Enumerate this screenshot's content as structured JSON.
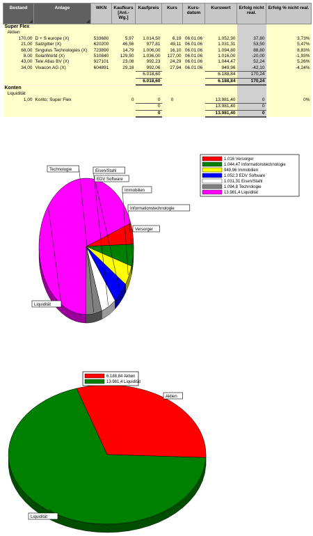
{
  "table": {
    "headers": [
      "Bestand",
      "Anlage",
      "WKN",
      "Kaufkurs [Anl.-Wg.]",
      "Kaufpreis",
      "Kurs",
      "Kurs-datum",
      "Kurswert",
      "Erfolg nicht real.",
      "Erfolg % nicht real."
    ],
    "section_super": "Super Flex",
    "group_aktien": "Aktien",
    "rows": [
      {
        "bestand": "170,00",
        "anlage": "D + S europe (X)",
        "wkn": "533680",
        "kaufkurs": "5,97",
        "kaufpreis": "1.014,50",
        "kurs": "6,19",
        "datum": "06.01.06",
        "kurswert": "1.052,30",
        "erfolg": "37,80",
        "prozent": "3,73%"
      },
      {
        "bestand": "21,00",
        "anlage": "Salzgitter (X)",
        "wkn": "620200",
        "kaufkurs": "46,56",
        "kaufpreis": "977,81",
        "kurs": "49,11",
        "datum": "06.01.06",
        "kurswert": "1.031,31",
        "erfolg": "53,50",
        "prozent": "5,47%"
      },
      {
        "bestand": "68,00",
        "anlage": "Singulus Technologies (X)",
        "wkn": "723890",
        "kaufkurs": "14,79",
        "kaufpreis": "1.006,00",
        "kurs": "16,10",
        "datum": "06.01.06",
        "kurswert": "1.094,80",
        "erfolg": "88,80",
        "prozent": "8,83%"
      },
      {
        "bestand": "8,00",
        "anlage": "SolarWorld (X)",
        "wkn": "510840",
        "kaufkurs": "129,50",
        "kaufpreis": "1.036,00",
        "kurs": "127,00",
        "datum": "06.01.06",
        "kurswert": "1.016,00",
        "erfolg": "-20,00",
        "prozent": "-1,93%"
      },
      {
        "bestand": "43,00",
        "anlage": "Tele Atlas BV (X)",
        "wkn": "927101",
        "kaufkurs": "23,08",
        "kaufpreis": "992,23",
        "kurs": "24,29",
        "datum": "06.01.06",
        "kurswert": "1.044,47",
        "erfolg": "52,24",
        "prozent": "5,26%"
      },
      {
        "bestand": "34,00",
        "anlage": "Vivacon AG (X)",
        "wkn": "604891",
        "kaufkurs": "29,18",
        "kaufpreis": "992,06",
        "kurs": "27,94",
        "datum": "06.01.06",
        "kurswert": "949,96",
        "erfolg": "-42,10",
        "prozent": "-4,24%"
      }
    ],
    "aktien_sub": {
      "kaufpreis": "6.018,60",
      "kurswert": "6.188,84",
      "erfolg": "170,24"
    },
    "aktien_total": {
      "kaufpreis": "6.018,60",
      "kurswert": "6.188,84",
      "erfolg": "170,24"
    },
    "section_konten": "Konten",
    "group_liquid": "Liquidität",
    "konto_row": {
      "bestand": "1,00",
      "anlage": "Konto: Super Flex",
      "kaufkurs": "0",
      "kaufpreis": "0",
      "kurs": "0",
      "kurswert": "13.981,40",
      "erfolg": "0",
      "prozent": "0%"
    },
    "konten_sub": {
      "kaufpreis": "0",
      "kurswert": "13.981,40",
      "erfolg": "0"
    },
    "konten_total": {
      "kaufpreis": "0",
      "kurswert": "13.981,40",
      "erfolg": "0"
    }
  },
  "chart_data": [
    {
      "type": "pie",
      "style": "3d",
      "categories": [
        "Versorger",
        "Informationstechnologie",
        "Immobilien",
        "EDV Software",
        "Eisen/Stahl",
        "Technologie",
        "Liquidität"
      ],
      "values": [
        1016.0,
        1044.47,
        949.96,
        1052.3,
        1031.31,
        1094.8,
        13981.4
      ],
      "colors": [
        "#ff0000",
        "#008000",
        "#ffff00",
        "#0000ff",
        "#ffffff",
        "#808080",
        "#ff00ff"
      ],
      "legend_entries": [
        "1.016 Versorger",
        "1.044,47 Informationstechnologie",
        "949,96 Immobilien",
        "1.052,3 EDV Software",
        "1.031,31 Eisen/Stahl",
        "1.094,8 Technologie",
        "13.981,4 Liquidität"
      ],
      "legend_position": "top-right"
    },
    {
      "type": "pie",
      "style": "3d",
      "categories": [
        "Aktien",
        "Liquidität"
      ],
      "values": [
        6188.84,
        13981.4
      ],
      "colors": [
        "#ff0000",
        "#008000"
      ],
      "legend_entries": [
        "6.188,84 Aktien",
        "13.981,4 Liquidität"
      ],
      "legend_position": "top"
    }
  ]
}
